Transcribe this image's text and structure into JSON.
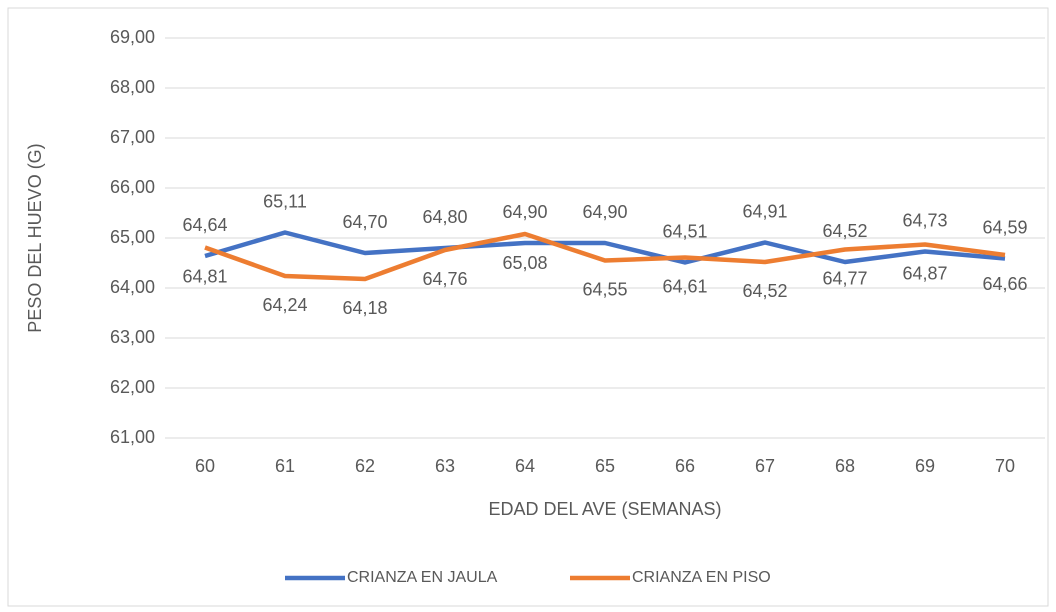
{
  "chart_data": {
    "type": "line",
    "x_label": "EDAD DEL AVE (SEMANAS)",
    "y_label": "PESO DEL HUEVO (G)",
    "categories": [
      "60",
      "61",
      "62",
      "63",
      "64",
      "65",
      "66",
      "67",
      "68",
      "69",
      "70"
    ],
    "series": [
      {
        "name": "CRIANZA EN JAULA",
        "color": "#4472c4",
        "values": [
          64.64,
          65.11,
          64.7,
          64.8,
          64.9,
          64.9,
          64.51,
          64.91,
          64.52,
          64.73,
          64.59
        ],
        "value_labels": [
          "64,64",
          "65,11",
          "64,70",
          "64,80",
          "64,90",
          "64,90",
          "64,51",
          "64,91",
          "64,52",
          "64,73",
          "64,59"
        ]
      },
      {
        "name": "CRIANZA EN PISO",
        "color": "#ed7d31",
        "values": [
          64.81,
          64.24,
          64.18,
          64.76,
          65.08,
          64.55,
          64.61,
          64.52,
          64.77,
          64.87,
          64.66
        ],
        "value_labels": [
          "64,81",
          "64,24",
          "64,18",
          "64,76",
          "65,08",
          "64,55",
          "64,61",
          "64,52",
          "64,77",
          "64,87",
          "64,66"
        ]
      }
    ],
    "ylim": [
      61,
      69
    ],
    "yticks": [
      {
        "value": 61,
        "label": "61,00"
      },
      {
        "value": 62,
        "label": "62,00"
      },
      {
        "value": 63,
        "label": "63,00"
      },
      {
        "value": 64,
        "label": "64,00"
      },
      {
        "value": 65,
        "label": "65,00"
      },
      {
        "value": 66,
        "label": "66,00"
      },
      {
        "value": 67,
        "label": "67,00"
      },
      {
        "value": 68,
        "label": "68,00"
      },
      {
        "value": 69,
        "label": "69,00"
      }
    ],
    "grid": true,
    "legend": "bottom"
  }
}
